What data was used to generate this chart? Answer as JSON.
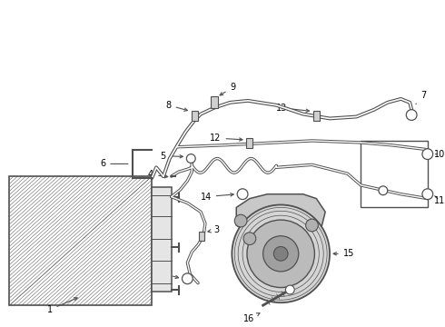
{
  "bg_color": "#ffffff",
  "line_color": "#505050",
  "label_color": "#000000",
  "figsize": [
    4.9,
    3.6
  ],
  "dpi": 100
}
